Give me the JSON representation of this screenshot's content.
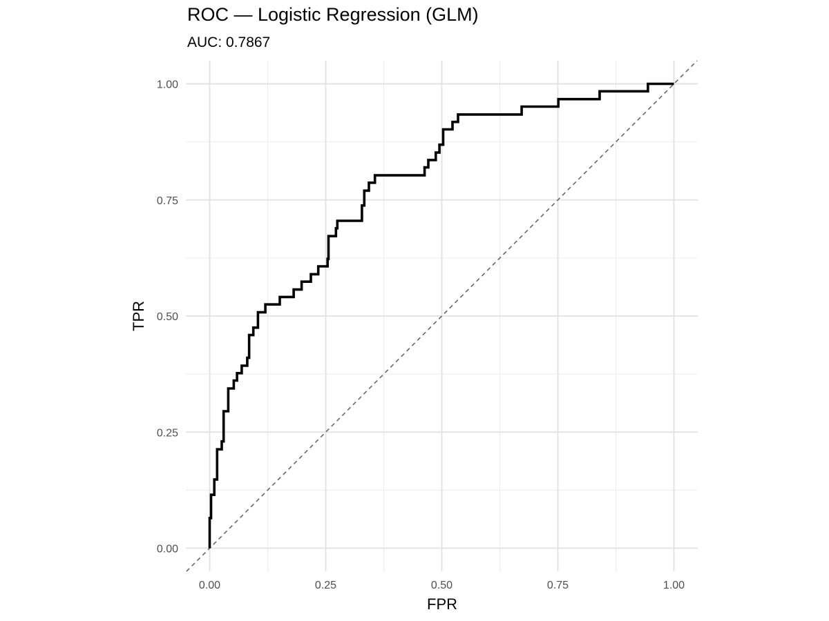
{
  "chart_data": {
    "type": "line",
    "title": "ROC — Logistic Regression (GLM)",
    "subtitle": "AUC: 0.7867",
    "xlabel": "FPR",
    "ylabel": "TPR",
    "xlim": [
      0,
      1
    ],
    "ylim": [
      0,
      1
    ],
    "x_ticks": [
      0,
      0.25,
      0.5,
      0.75,
      1
    ],
    "x_tick_labels": [
      "0.00",
      "0.25",
      "0.50",
      "0.75",
      "1.00"
    ],
    "y_ticks": [
      0,
      0.25,
      0.5,
      0.75,
      1
    ],
    "y_tick_labels": [
      "0.00",
      "0.25",
      "0.50",
      "0.75",
      "1.00"
    ],
    "grid": true,
    "legend": "none",
    "series": [
      {
        "style": "step",
        "color": "#000000",
        "x": [
          0.0,
          0.0,
          0.0,
          0.003,
          0.003,
          0.01,
          0.01,
          0.016,
          0.016,
          0.026,
          0.026,
          0.03,
          0.03,
          0.04,
          0.04,
          0.052,
          0.052,
          0.059,
          0.059,
          0.069,
          0.069,
          0.081,
          0.081,
          0.085,
          0.085,
          0.094,
          0.094,
          0.104,
          0.104,
          0.12,
          0.12,
          0.151,
          0.151,
          0.181,
          0.181,
          0.198,
          0.198,
          0.218,
          0.218,
          0.234,
          0.234,
          0.254,
          0.254,
          0.256,
          0.256,
          0.272,
          0.272,
          0.275,
          0.275,
          0.328,
          0.328,
          0.333,
          0.333,
          0.343,
          0.343,
          0.356,
          0.356,
          0.463,
          0.463,
          0.471,
          0.471,
          0.487,
          0.487,
          0.495,
          0.495,
          0.503,
          0.503,
          0.523,
          0.523,
          0.535,
          0.535,
          0.672,
          0.672,
          0.751,
          0.751,
          0.84,
          0.84,
          0.944,
          0.944,
          1.0
        ],
        "y": [
          0.0,
          0.02,
          0.065,
          0.065,
          0.115,
          0.115,
          0.148,
          0.148,
          0.213,
          0.213,
          0.23,
          0.23,
          0.295,
          0.295,
          0.344,
          0.344,
          0.361,
          0.361,
          0.377,
          0.377,
          0.393,
          0.393,
          0.41,
          0.41,
          0.459,
          0.459,
          0.475,
          0.475,
          0.508,
          0.508,
          0.525,
          0.525,
          0.541,
          0.541,
          0.557,
          0.557,
          0.574,
          0.574,
          0.59,
          0.59,
          0.607,
          0.607,
          0.623,
          0.623,
          0.672,
          0.672,
          0.689,
          0.689,
          0.705,
          0.705,
          0.738,
          0.738,
          0.77,
          0.77,
          0.787,
          0.787,
          0.803,
          0.803,
          0.82,
          0.82,
          0.836,
          0.836,
          0.852,
          0.852,
          0.869,
          0.869,
          0.902,
          0.902,
          0.918,
          0.918,
          0.934,
          0.934,
          0.951,
          0.951,
          0.967,
          0.967,
          0.984,
          0.984,
          1.0,
          1.0
        ]
      },
      {
        "style": "dashed-diagonal",
        "color": "#666666",
        "x": [
          -0.05,
          1.05
        ],
        "y": [
          -0.05,
          1.05
        ]
      }
    ]
  }
}
